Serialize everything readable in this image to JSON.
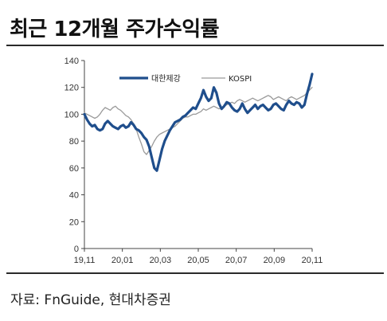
{
  "title": "최근 12개월 주가수익률",
  "source": "자료: FnGuide, 현대차증권",
  "chart_data": {
    "type": "line",
    "ylim": [
      0,
      140
    ],
    "yticks": [
      0,
      20,
      40,
      60,
      80,
      100,
      120,
      140
    ],
    "x_ticks": [
      "19,11",
      "20,01",
      "20,03",
      "20,05",
      "20,07",
      "20,09",
      "20,11"
    ],
    "legend_position": "top-center",
    "grid": false,
    "series": [
      {
        "name": "대한제강",
        "color": "#1f4e8c",
        "values": [
          100,
          96,
          93,
          91,
          92,
          89,
          88,
          89,
          93,
          95,
          93,
          91,
          90,
          89,
          91,
          92,
          90,
          91,
          94,
          92,
          89,
          88,
          86,
          83,
          81,
          76,
          68,
          60,
          58,
          66,
          74,
          80,
          84,
          88,
          91,
          94,
          95,
          96,
          98,
          99,
          101,
          103,
          105,
          104,
          108,
          112,
          118,
          113,
          110,
          112,
          120,
          116,
          108,
          104,
          106,
          109,
          108,
          105,
          103,
          102,
          104,
          108,
          104,
          101,
          103,
          105,
          107,
          104,
          106,
          107,
          105,
          103,
          104,
          107,
          108,
          106,
          104,
          103,
          107,
          110,
          108,
          107,
          109,
          108,
          105,
          107,
          115,
          122,
          130
        ]
      },
      {
        "name": "KOSPI",
        "color": "#9a9a9a",
        "values": [
          101,
          100,
          99,
          98,
          97,
          98,
          100,
          103,
          105,
          104,
          103,
          105,
          106,
          104,
          103,
          101,
          99,
          98,
          96,
          93,
          89,
          83,
          78,
          72,
          70,
          73,
          76,
          80,
          83,
          85,
          86,
          87,
          88,
          89,
          90,
          91,
          93,
          95,
          97,
          98,
          98,
          99,
          100,
          100,
          101,
          102,
          104,
          103,
          104,
          105,
          106,
          105,
          104,
          105,
          106,
          107,
          108,
          109,
          108,
          110,
          111,
          110,
          109,
          110,
          111,
          112,
          111,
          110,
          111,
          112,
          113,
          114,
          113,
          111,
          112,
          113,
          112,
          111,
          110,
          112,
          113,
          112,
          111,
          112,
          113,
          114,
          116,
          118,
          120
        ]
      }
    ]
  }
}
